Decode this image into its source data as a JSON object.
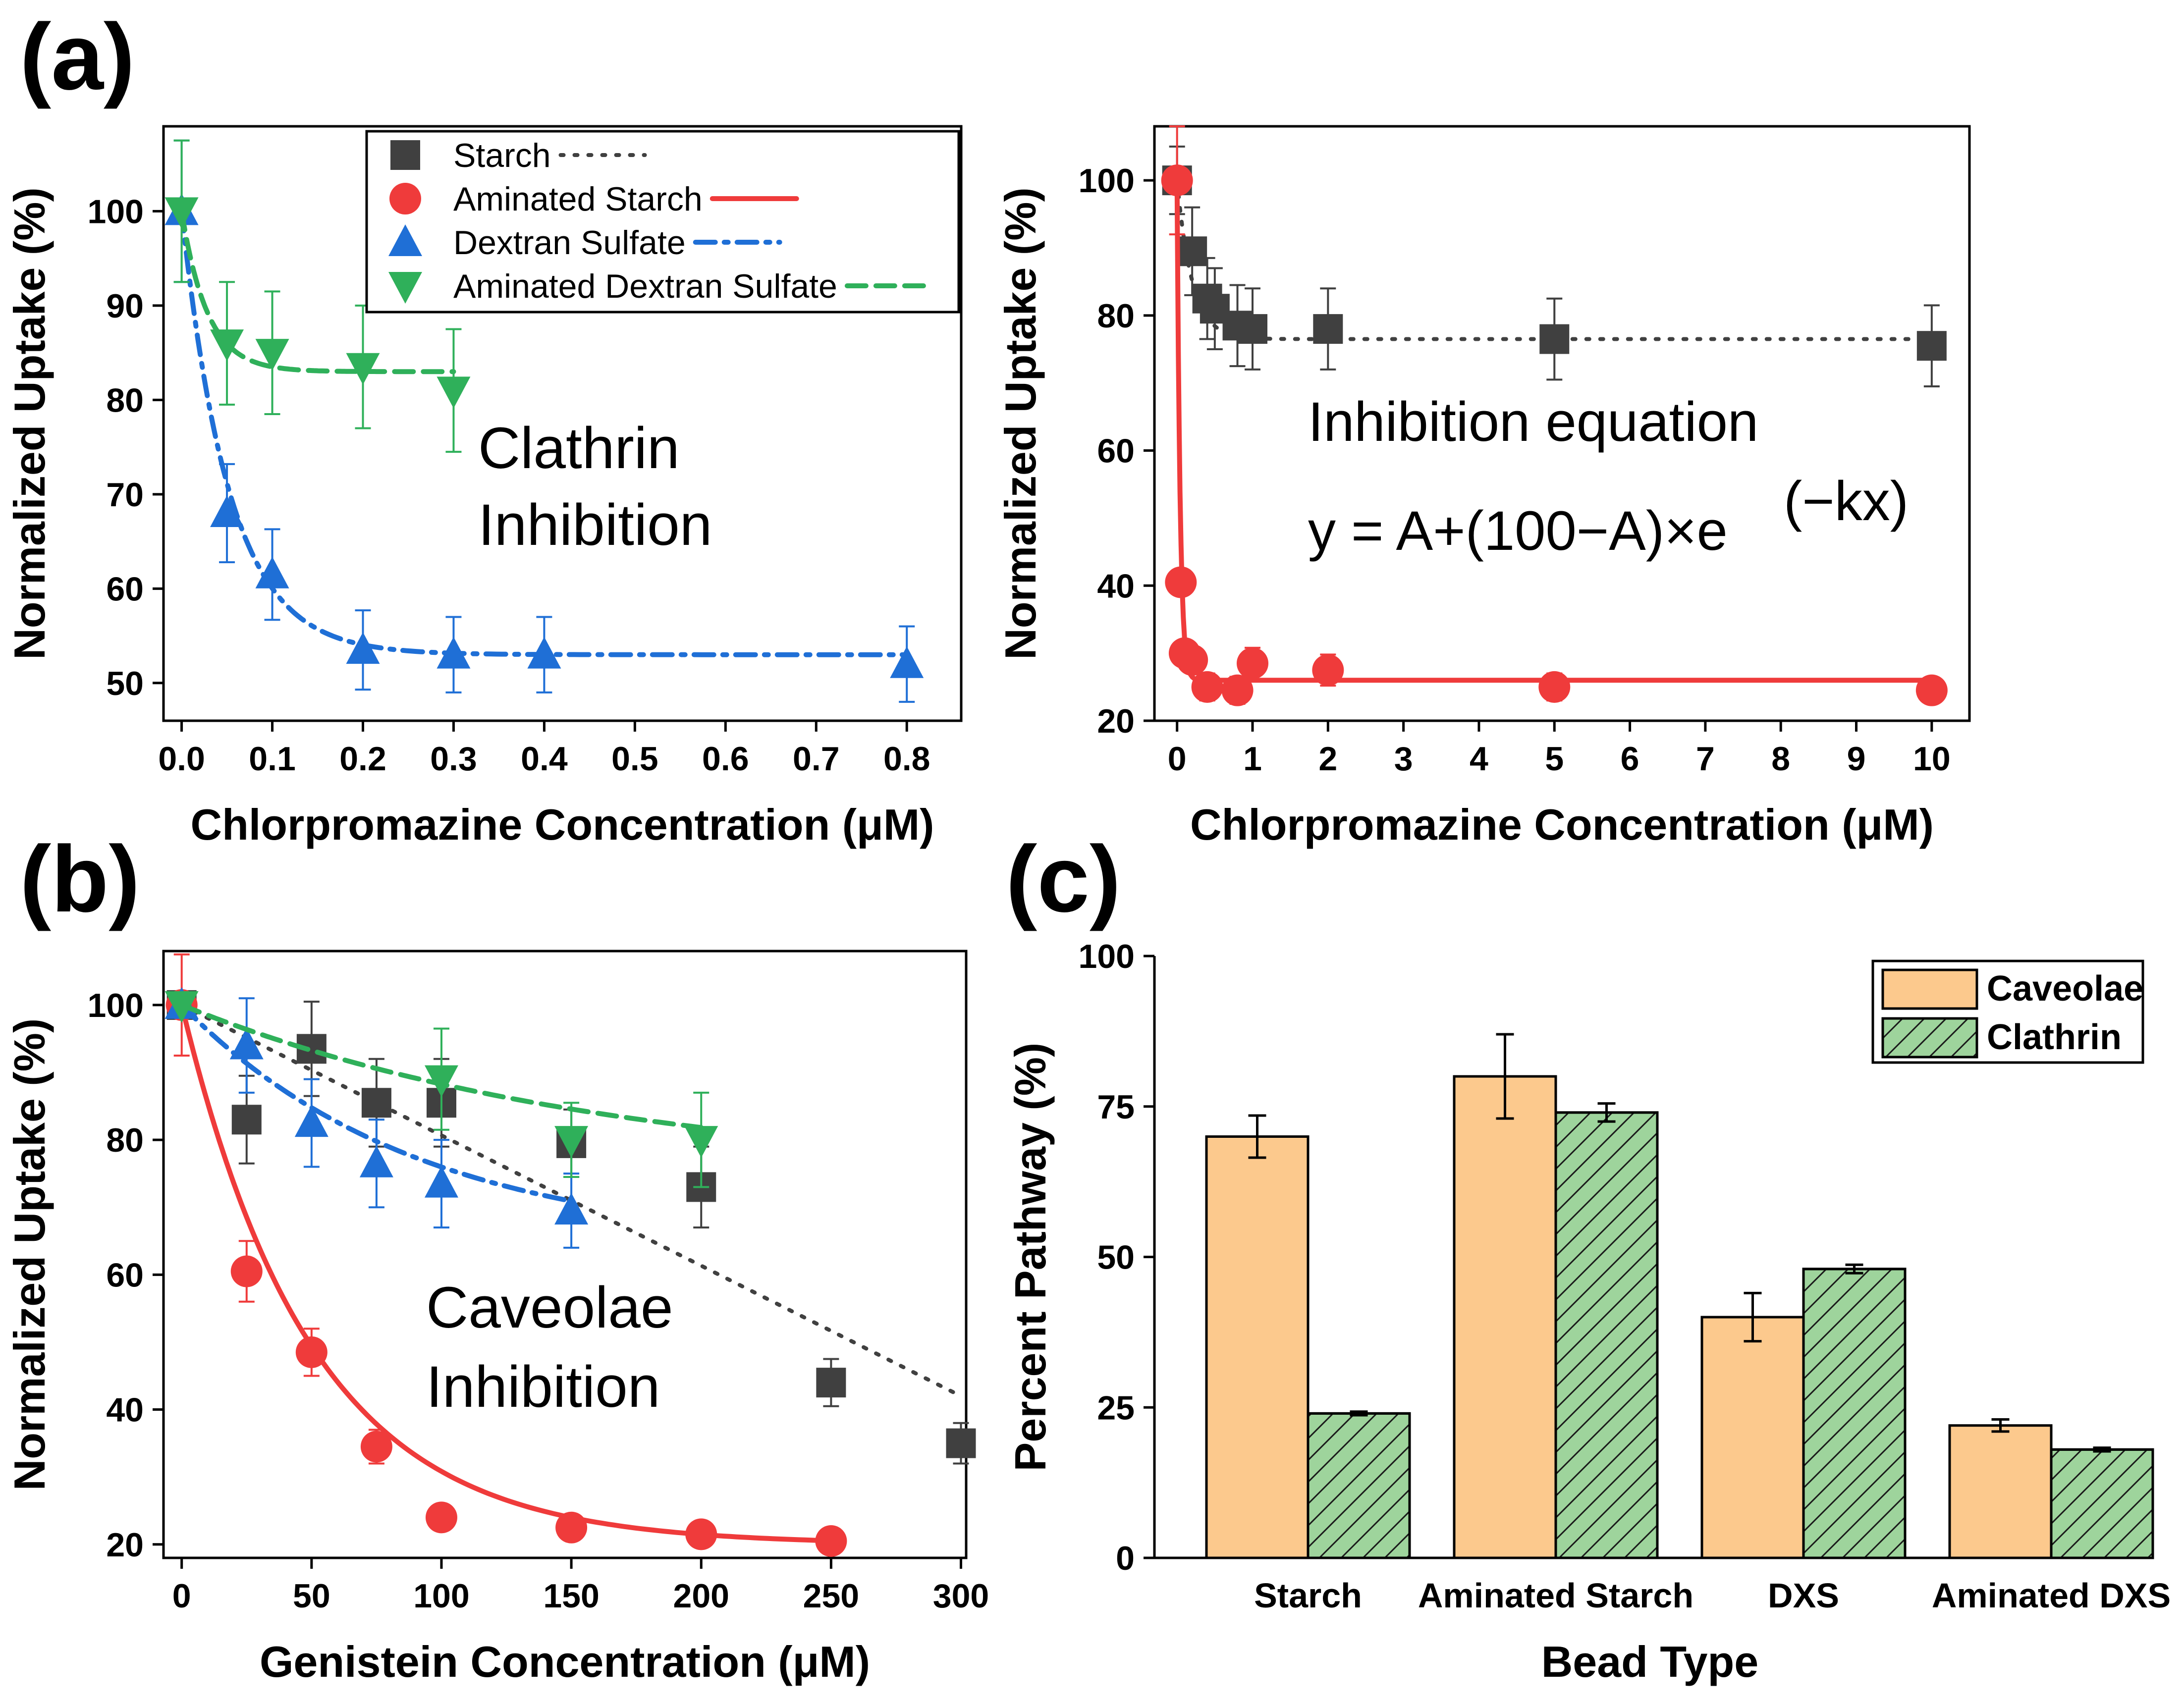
{
  "panel_labels": {
    "a": "(a)",
    "b": "(b)",
    "c": "(c)"
  },
  "colors": {
    "starch": "#404040",
    "aminated_starch": "#ef3b3b",
    "dextran_sulfate": "#1f6fd6",
    "aminated_dextran_sulfate": "#2fb05a",
    "caveolae": "#fcc98d",
    "clathrin": "#9ed49c"
  },
  "chart_data": [
    {
      "id": "a1",
      "type": "scatter",
      "panel": "(a)",
      "xlabel": "Chlorpromazine Concentration (μM)",
      "ylabel": "Normalized Uptake (%)",
      "xlim": [
        -0.02,
        0.86
      ],
      "ylim": [
        46,
        109
      ],
      "xticks": [
        0.0,
        0.1,
        0.2,
        0.3,
        0.4,
        0.5,
        0.6,
        0.7,
        0.8
      ],
      "xtick_labels": [
        "0.0",
        "0.1",
        "0.2",
        "0.3",
        "0.4",
        "0.5",
        "0.6",
        "0.7",
        "0.8"
      ],
      "yticks": [
        50,
        60,
        70,
        80,
        90,
        100
      ],
      "ytick_labels": [
        "50",
        "60",
        "70",
        "80",
        "90",
        "100"
      ],
      "annotation": [
        "Clathrin",
        "Inhibition"
      ],
      "legend": [
        {
          "name": "Starch",
          "marker": "square",
          "line": "dotted",
          "color_key": "starch"
        },
        {
          "name": "Aminated Starch",
          "marker": "circle",
          "line": "solid",
          "color_key": "aminated_starch"
        },
        {
          "name": "Dextran Sulfate",
          "marker": "triangle-up",
          "line": "dashdot",
          "color_key": "dextran_sulfate"
        },
        {
          "name": "Aminated Dextran Sulfate",
          "marker": "triangle-down",
          "line": "dashed",
          "color_key": "aminated_dextran_sulfate"
        }
      ],
      "series": [
        {
          "name": "Dextran Sulfate",
          "color_key": "dextran_sulfate",
          "marker": "triangle-up",
          "line": "dashdot",
          "x": [
            0.0,
            0.05,
            0.1,
            0.2,
            0.3,
            0.4,
            0.8
          ],
          "y": [
            100,
            68,
            61.5,
            53.5,
            53,
            53,
            52
          ],
          "err": [
            7.5,
            5.2,
            4.8,
            4.2,
            4,
            4,
            4
          ],
          "fit": {
            "A": 53,
            "k": 19,
            "xmax": 0.8
          }
        },
        {
          "name": "Aminated Dextran Sulfate",
          "color_key": "aminated_dextran_sulfate",
          "marker": "triangle-down",
          "line": "dashed",
          "x": [
            0.0,
            0.05,
            0.1,
            0.2,
            0.3
          ],
          "y": [
            100,
            86,
            85,
            83.5,
            81
          ],
          "err": [
            7.5,
            6.5,
            6.5,
            6.5,
            6.5
          ],
          "fit": {
            "A": 83,
            "k": 35,
            "xmax": 0.3
          }
        }
      ]
    },
    {
      "id": "a2",
      "type": "scatter",
      "xlabel": "Chlorpromazine Concentration (μM)",
      "ylabel": "Normalized Uptake (%)",
      "xlim": [
        -0.3,
        10.5
      ],
      "ylim": [
        20,
        108
      ],
      "xticks": [
        0,
        1,
        2,
        3,
        4,
        5,
        6,
        7,
        8,
        9,
        10
      ],
      "xtick_labels": [
        "0",
        "1",
        "2",
        "3",
        "4",
        "5",
        "6",
        "7",
        "8",
        "9",
        "10"
      ],
      "yticks": [
        20,
        40,
        60,
        80,
        100
      ],
      "ytick_labels": [
        "20",
        "40",
        "60",
        "80",
        "100"
      ],
      "annotation": [
        "Inhibition equation",
        "y = A+(100−A)×e",
        "(−kx)"
      ],
      "series": [
        {
          "name": "Starch",
          "color_key": "starch",
          "marker": "square",
          "line": "dotted",
          "x": [
            0,
            0.2,
            0.4,
            0.5,
            0.8,
            1,
            2,
            5,
            10
          ],
          "y": [
            100,
            89.5,
            82.5,
            81,
            78.5,
            78,
            78,
            76.5,
            75.5
          ],
          "err": [
            5,
            6.5,
            6,
            6,
            6,
            6,
            6,
            6,
            6
          ],
          "fit": {
            "A": 76.5,
            "k": 5,
            "xmax": 10
          }
        },
        {
          "name": "Aminated Starch",
          "color_key": "aminated_starch",
          "marker": "circle",
          "line": "solid",
          "x": [
            0,
            0.05,
            0.1,
            0.2,
            0.4,
            0.8,
            1,
            2,
            5,
            10
          ],
          "y": [
            100,
            40.5,
            30,
            29,
            25,
            24.5,
            28.5,
            27.5,
            25,
            24.5
          ],
          "err": [
            8,
            0,
            0,
            0,
            2,
            2,
            2.3,
            2.3,
            2,
            1.5
          ],
          "fit": {
            "A": 26,
            "k": 25,
            "xmax": 10
          }
        }
      ]
    },
    {
      "id": "b",
      "type": "scatter",
      "panel": "(b)",
      "xlabel": "Genistein Concentration (μM)",
      "ylabel": "Normalized Uptake (%)",
      "xlim": [
        -7,
        302
      ],
      "ylim": [
        18,
        108
      ],
      "xticks": [
        0,
        50,
        100,
        150,
        200,
        250,
        300
      ],
      "xtick_labels": [
        "0",
        "50",
        "100",
        "150",
        "200",
        "250",
        "300"
      ],
      "yticks": [
        20,
        40,
        60,
        80,
        100
      ],
      "ytick_labels": [
        "20",
        "40",
        "60",
        "80",
        "100"
      ],
      "annotation": [
        "Caveolae",
        "Inhibition"
      ],
      "series": [
        {
          "name": "Starch",
          "color_key": "starch",
          "marker": "square",
          "line": "dotted",
          "x": [
            0,
            25,
            50,
            75,
            100,
            150,
            200,
            250,
            300
          ],
          "y": [
            100,
            83,
            93.5,
            85.5,
            85.5,
            79.5,
            73,
            44,
            35
          ],
          "err": [
            0,
            6.5,
            7,
            6.5,
            6.5,
            5,
            6,
            3.5,
            3
          ],
          "fit_line": {
            "x": [
              0,
              300
            ],
            "y": [
              100,
              42
            ]
          }
        },
        {
          "name": "Aminated Starch",
          "color_key": "aminated_starch",
          "marker": "circle",
          "line": "solid",
          "x": [
            0,
            25,
            50,
            75,
            100,
            150,
            200,
            250
          ],
          "y": [
            100,
            60.5,
            48.5,
            34.5,
            24,
            22.5,
            21.5,
            20.5
          ],
          "err": [
            7.5,
            4.5,
            3.5,
            2.5,
            1,
            1,
            1,
            0.5
          ],
          "fit": {
            "A": 20,
            "k": 0.02,
            "xmax": 250
          }
        },
        {
          "name": "Dextran Sulfate",
          "color_key": "dextran_sulfate",
          "marker": "triangle-up",
          "line": "dashdot",
          "x": [
            0,
            25,
            50,
            75,
            100,
            150
          ],
          "y": [
            100,
            94,
            82.5,
            76.5,
            73.5,
            69.5
          ],
          "err": [
            0,
            7,
            6.5,
            6.5,
            6.5,
            5.5
          ],
          "fit": {
            "A": 64,
            "k": 0.011,
            "xmax": 150
          }
        },
        {
          "name": "Aminated Dextran Sulfate",
          "color_key": "aminated_dextran_sulfate",
          "marker": "triangle-down",
          "line": "dashed",
          "x": [
            0,
            100,
            150,
            200
          ],
          "y": [
            100,
            89,
            80,
            80
          ],
          "err": [
            0,
            7.5,
            5.5,
            7
          ],
          "fit": {
            "A": 74,
            "k": 0.006,
            "xmax": 200
          }
        }
      ]
    },
    {
      "id": "c",
      "type": "bar",
      "panel": "(c)",
      "xlabel": "Bead Type",
      "ylabel": "Percent Pathway (%)",
      "ylim": [
        0,
        100
      ],
      "yticks": [
        0,
        25,
        50,
        75,
        100
      ],
      "ytick_labels": [
        "0",
        "25",
        "50",
        "75",
        "100"
      ],
      "categories": [
        "Starch",
        "Aminated Starch",
        "DXS",
        "Aminated DXS"
      ],
      "series": [
        {
          "name": "Caveolae",
          "color_key": "caveolae",
          "hatch": false,
          "values": [
            70,
            80,
            40,
            22
          ],
          "err": [
            3.5,
            7,
            4,
            1
          ]
        },
        {
          "name": "Clathrin",
          "color_key": "clathrin",
          "hatch": true,
          "values": [
            24,
            74,
            48,
            18
          ],
          "err": [
            0.3,
            1.5,
            0.7,
            0.3
          ]
        }
      ]
    }
  ]
}
